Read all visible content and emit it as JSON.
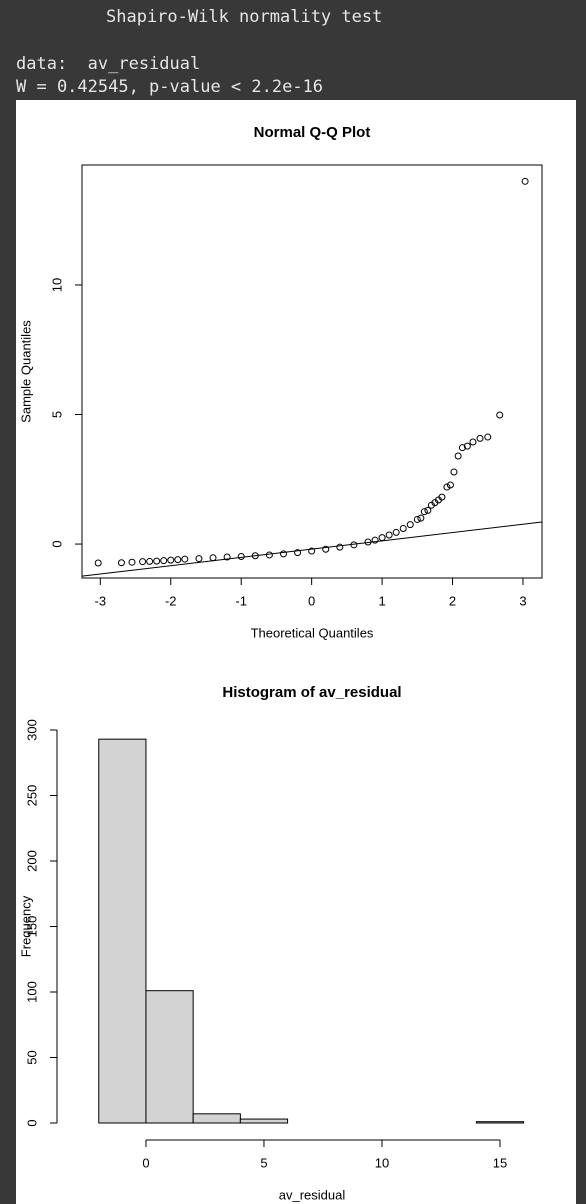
{
  "console": [
    "Shapiro-Wilk normality test",
    "data:  av_residual",
    "W = 0.42545, p-value < 2.2e-16"
  ],
  "chart_data": [
    {
      "type": "scatter",
      "title": "Normal Q-Q Plot",
      "x_label": "Theoretical Quantiles",
      "y_label": "Sample Quantiles",
      "x": [
        -3.03,
        -2.7,
        -2.55,
        -2.4,
        -2.3,
        -2.2,
        -2.1,
        -2.0,
        -1.9,
        -1.8,
        -1.6,
        -1.4,
        -1.2,
        -1.0,
        -0.8,
        -0.6,
        -0.4,
        -0.2,
        0,
        0.2,
        0.4,
        0.6,
        0.8,
        0.9,
        1.0,
        1.1,
        1.2,
        1.3,
        1.4,
        1.5,
        1.55,
        1.6,
        1.65,
        1.7,
        1.75,
        1.8,
        1.85,
        1.92,
        1.97,
        2.02,
        2.08,
        2.14,
        2.21,
        2.29,
        2.39,
        2.5,
        2.67,
        3.03
      ],
      "values": [
        -0.73,
        -0.72,
        -0.7,
        -0.68,
        -0.67,
        -0.66,
        -0.64,
        -0.62,
        -0.6,
        -0.58,
        -0.56,
        -0.53,
        -0.5,
        -0.48,
        -0.45,
        -0.42,
        -0.38,
        -0.33,
        -0.27,
        -0.2,
        -0.12,
        -0.03,
        0.08,
        0.15,
        0.25,
        0.35,
        0.45,
        0.6,
        0.75,
        0.95,
        1.0,
        1.25,
        1.3,
        1.5,
        1.6,
        1.7,
        1.81,
        2.2,
        2.28,
        2.78,
        3.4,
        3.72,
        3.78,
        3.94,
        4.08,
        4.13,
        4.98,
        14.0
      ],
      "qqline": {
        "intercept": -0.195,
        "slope": 0.32
      },
      "xlim": [
        -3.26,
        3.27
      ],
      "ylim": [
        -1.31,
        14.63
      ],
      "xticks": [
        -3,
        -2,
        -1,
        0,
        1,
        2,
        3
      ],
      "yticks": [
        0,
        5,
        10
      ],
      "color": "#000000"
    },
    {
      "type": "histogram",
      "title": "Histogram of av_residual",
      "x_label": "av_residual",
      "y_label": "Frequency",
      "bins": [
        -2,
        0,
        2,
        4,
        6,
        8,
        10,
        12,
        14,
        16
      ],
      "values": [
        293,
        101,
        7,
        3,
        0,
        0,
        0,
        0,
        1
      ],
      "xlim": [
        -2.71,
        16.78
      ],
      "ylim": [
        0,
        300
      ],
      "xticks": [
        0,
        5,
        10,
        15
      ],
      "yticks": [
        0,
        50,
        100,
        150,
        200,
        250,
        300
      ],
      "color": "#d3d3d3"
    }
  ]
}
